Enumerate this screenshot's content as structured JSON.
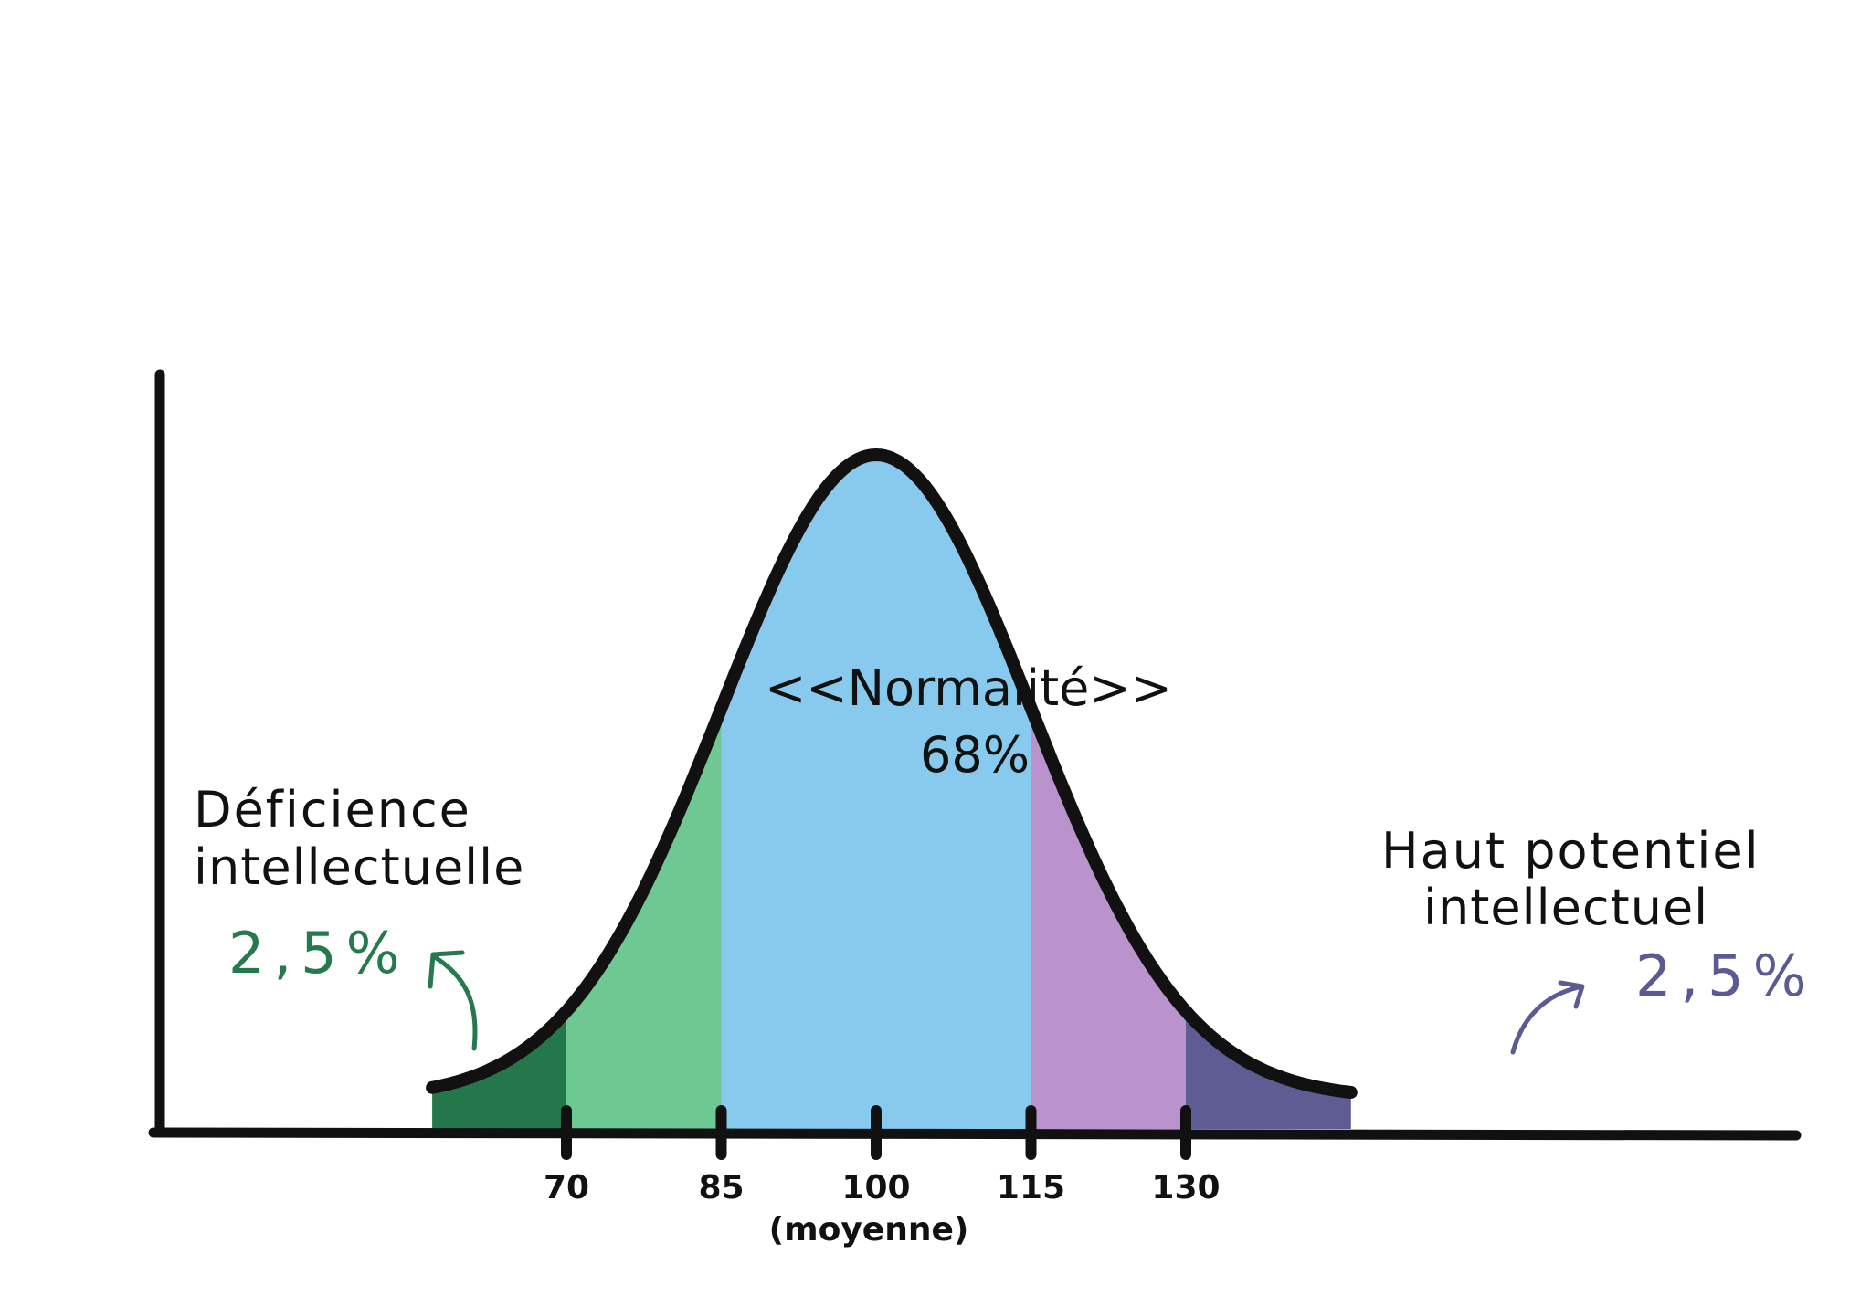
{
  "chart_data": {
    "type": "area",
    "distribution": "normal",
    "mean": 100,
    "sd": 15,
    "x_range": [
      57,
      146
    ],
    "xticks": [
      {
        "value": 70,
        "label": "70"
      },
      {
        "value": 85,
        "label": "85"
      },
      {
        "value": 100,
        "label": "100",
        "sublabel": "(moyenne)"
      },
      {
        "value": 115,
        "label": "115"
      },
      {
        "value": 130,
        "label": "130"
      }
    ],
    "regions": [
      {
        "from": 57,
        "to": 70,
        "color": "#24774a"
      },
      {
        "from": 70,
        "to": 85,
        "color": "#6dc891"
      },
      {
        "from": 85,
        "to": 115,
        "color": "#88caed"
      },
      {
        "from": 115,
        "to": 130,
        "color": "#bb93cc"
      },
      {
        "from": 130,
        "to": 146,
        "color": "#5f5b93"
      }
    ],
    "annotations": {
      "center": {
        "title": "<<Normalité>>",
        "value": "68%"
      },
      "left": {
        "line1": "Déficience",
        "line2": "intellectuelle",
        "value": "2,5%",
        "color": "#247a4d"
      },
      "right": {
        "line1": "Haut potentiel",
        "line2": "intellectuel",
        "value": "2,5%",
        "color": "#5b5a95"
      }
    }
  }
}
